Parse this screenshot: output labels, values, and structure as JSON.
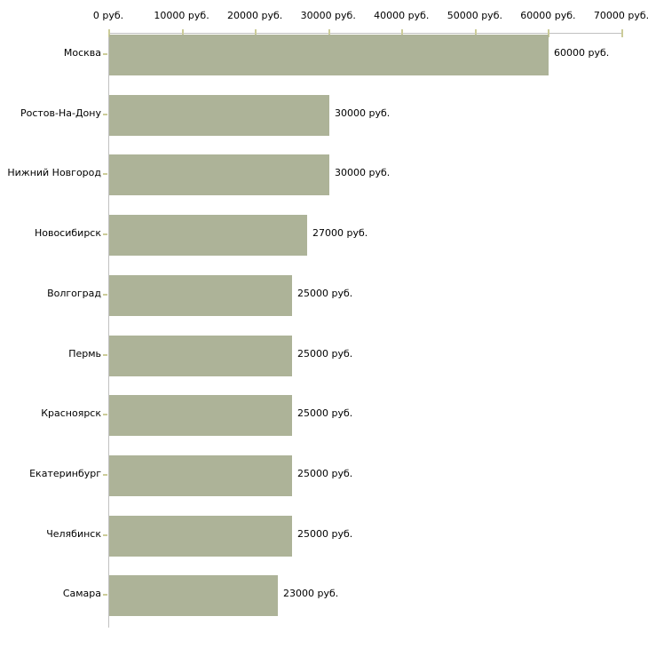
{
  "chart_data": {
    "type": "bar",
    "orientation": "horizontal",
    "title": "",
    "xlabel": "",
    "ylabel": "",
    "grid": false,
    "legend": false,
    "categories": [
      "Москва",
      "Ростов-На-Дону",
      "Нижний Новгород",
      "Новосибирск",
      "Волгоград",
      "Пермь",
      "Красноярск",
      "Екатеринбург",
      "Челябинск",
      "Самара"
    ],
    "values": [
      60000,
      30000,
      30000,
      27000,
      25000,
      25000,
      25000,
      25000,
      25000,
      23000
    ],
    "value_labels": [
      "60000 руб.",
      "30000 руб.",
      "30000 руб.",
      "27000 руб.",
      "25000 руб.",
      "25000 руб.",
      "25000 руб.",
      "25000 руб.",
      "25000 руб.",
      "23000 руб."
    ],
    "x_axis": {
      "position": "top",
      "range": [
        0,
        70000
      ],
      "ticks": [
        0,
        10000,
        20000,
        30000,
        40000,
        50000,
        60000,
        70000
      ],
      "tick_labels": [
        "0 руб.",
        "10000 руб.",
        "20000 руб.",
        "30000 руб.",
        "40000 руб.",
        "50000 руб.",
        "60000 руб.",
        "70000 руб."
      ]
    },
    "colors": {
      "bar": "#adb398",
      "axis_line": "#c1c1c1",
      "tick_mark": "#cccc99",
      "text": "#000000",
      "background": "#ffffff"
    }
  }
}
